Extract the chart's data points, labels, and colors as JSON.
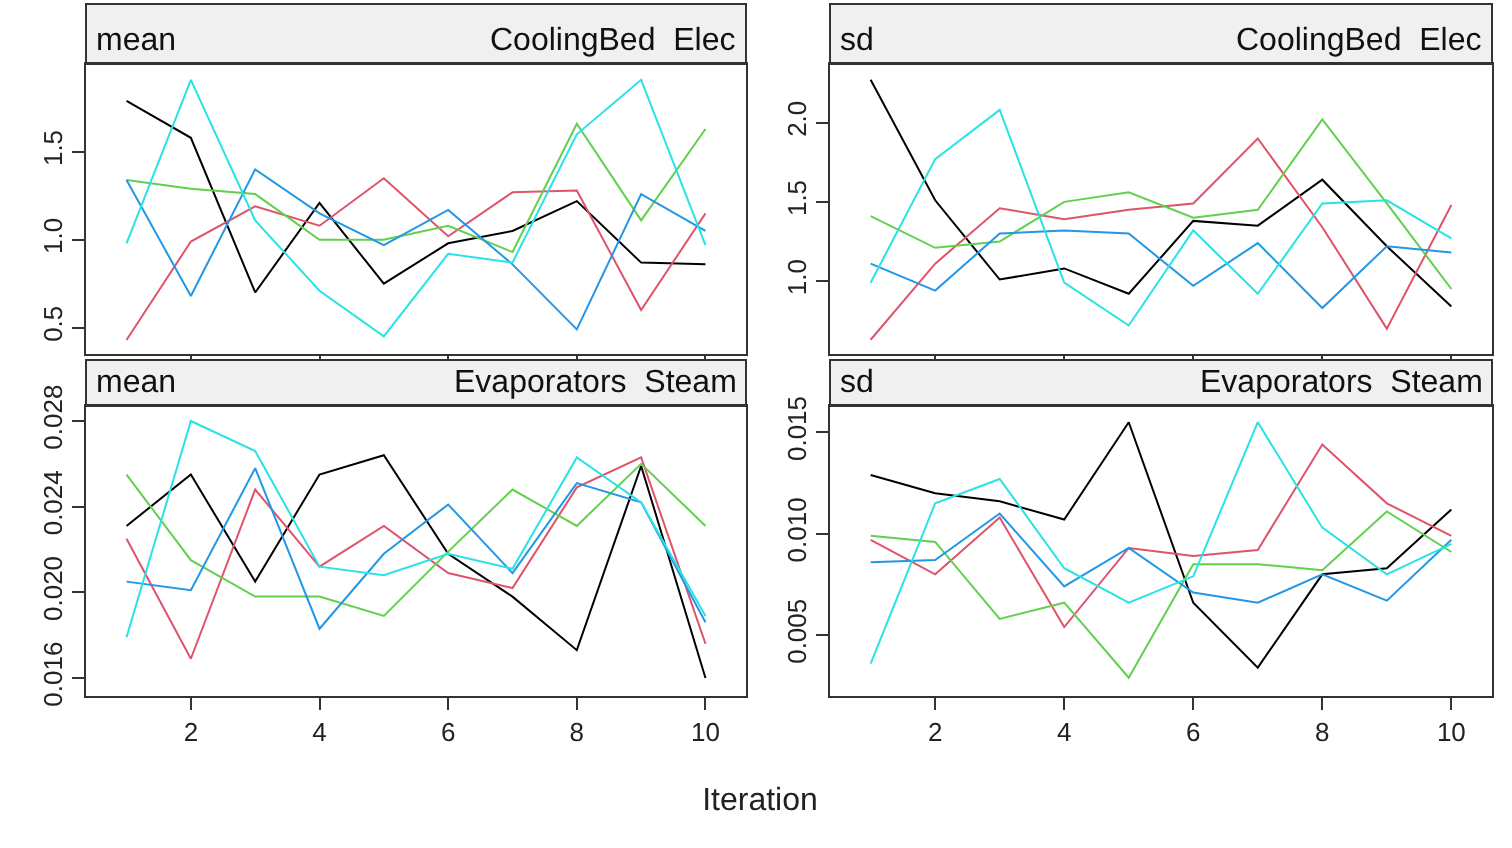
{
  "chart_data": [
    {
      "type": "line",
      "title": "mean",
      "subtitle": "CoolingBed  Elec",
      "x": [
        1,
        2,
        3,
        4,
        5,
        6,
        7,
        8,
        9,
        10
      ],
      "xlim": [
        0.37,
        10.63
      ],
      "xticks": [
        2,
        4,
        6,
        8,
        10
      ],
      "ylim": [
        0.35,
        2.0
      ],
      "yticks": [
        0.5,
        {
          "value": 1,
          "label": "1.0"
        },
        1.5
      ],
      "tick_labels": "y",
      "grid": false,
      "line_style": "solid",
      "series": [
        {
          "color": "#000000",
          "values": [
            1.79,
            1.58,
            0.7,
            1.21,
            0.75,
            0.98,
            1.05,
            1.22,
            0.87,
            0.86
          ]
        },
        {
          "color": "#df536b",
          "values": [
            0.43,
            0.99,
            1.19,
            1.08,
            1.35,
            1.02,
            1.27,
            1.28,
            0.6,
            1.15
          ]
        },
        {
          "color": "#61d04f",
          "values": [
            1.34,
            1.29,
            1.26,
            1.0,
            1.0,
            1.08,
            0.93,
            1.66,
            1.11,
            1.63
          ]
        },
        {
          "color": "#2297e6",
          "values": [
            1.34,
            0.68,
            1.4,
            1.15,
            0.97,
            1.17,
            0.86,
            0.49,
            1.26,
            1.05
          ]
        },
        {
          "color": "#28e2e5",
          "values": [
            0.98,
            1.91,
            1.11,
            0.71,
            0.45,
            0.92,
            0.87,
            1.6,
            1.91,
            0.97
          ]
        }
      ]
    },
    {
      "type": "line",
      "title": "sd",
      "subtitle": "CoolingBed  Elec",
      "x": [
        1,
        2,
        3,
        4,
        5,
        6,
        7,
        8,
        9,
        10
      ],
      "xlim": [
        0.37,
        10.63
      ],
      "xticks": [
        2,
        4,
        6,
        8,
        10
      ],
      "ylim": [
        0.54,
        2.37
      ],
      "yticks": [
        {
          "value": 1,
          "label": "1.0"
        },
        1.5,
        {
          "value": 2,
          "label": "2.0"
        }
      ],
      "tick_labels": "y",
      "grid": false,
      "line_style": "solid",
      "series": [
        {
          "color": "#000000",
          "values": [
            2.27,
            1.51,
            1.01,
            1.08,
            0.92,
            1.38,
            1.35,
            1.64,
            1.22,
            0.84
          ]
        },
        {
          "color": "#df536b",
          "values": [
            0.63,
            1.11,
            1.46,
            1.39,
            1.45,
            1.49,
            1.9,
            1.34,
            0.7,
            1.48
          ]
        },
        {
          "color": "#61d04f",
          "values": [
            1.41,
            1.21,
            1.25,
            1.5,
            1.56,
            1.4,
            1.45,
            2.02,
            1.49,
            0.95
          ]
        },
        {
          "color": "#2297e6",
          "values": [
            1.11,
            0.94,
            1.3,
            1.32,
            1.3,
            0.97,
            1.24,
            0.83,
            1.22,
            1.18
          ]
        },
        {
          "color": "#28e2e5",
          "values": [
            0.99,
            1.77,
            2.08,
            0.99,
            0.72,
            1.32,
            0.92,
            1.49,
            1.51,
            1.27
          ]
        }
      ]
    },
    {
      "type": "line",
      "title": "mean",
      "subtitle": "Evaporators  Steam",
      "xlabel": "Iteration",
      "x": [
        1,
        2,
        3,
        4,
        5,
        6,
        7,
        8,
        9,
        10
      ],
      "xlim": [
        0.37,
        10.63
      ],
      "xticks": [
        2,
        4,
        6,
        8,
        10
      ],
      "ylim": [
        0.01516,
        0.0287
      ],
      "yticks": [
        0.016,
        {
          "value": 0.02,
          "label": "0.020"
        },
        0.024,
        0.028
      ],
      "grid": false,
      "line_style": "solid",
      "series": [
        {
          "color": "#000000",
          "values": [
            0.0231,
            0.0255,
            0.0205,
            0.0255,
            0.0264,
            0.0218,
            0.0198,
            0.0173,
            0.0259,
            0.016
          ]
        },
        {
          "color": "#df536b",
          "values": [
            0.0225,
            0.0169,
            0.0248,
            0.0212,
            0.0231,
            0.0209,
            0.0202,
            0.0249,
            0.0263,
            0.0176
          ]
        },
        {
          "color": "#61d04f",
          "values": [
            0.0255,
            0.0215,
            0.0198,
            0.0198,
            0.0189,
            0.0219,
            0.0248,
            0.0231,
            0.026,
            0.0231
          ]
        },
        {
          "color": "#2297e6",
          "values": [
            0.0205,
            0.0201,
            0.0258,
            0.0183,
            0.0218,
            0.0241,
            0.0209,
            0.0251,
            0.0242,
            0.0186
          ]
        },
        {
          "color": "#28e2e5",
          "values": [
            0.0179,
            0.028,
            0.0266,
            0.0212,
            0.0208,
            0.0218,
            0.0211,
            0.0263,
            0.0242,
            0.0189
          ]
        }
      ]
    },
    {
      "type": "line",
      "title": "sd",
      "subtitle": "Evaporators  Steam",
      "x": [
        1,
        2,
        3,
        4,
        5,
        6,
        7,
        8,
        9,
        10
      ],
      "xlim": [
        0.37,
        10.63
      ],
      "xticks": [
        2,
        4,
        6,
        8,
        10
      ],
      "ylim": [
        0.002,
        0.0163
      ],
      "yticks": [
        0.005,
        {
          "value": 0.01,
          "label": "0.010"
        },
        0.015
      ],
      "grid": false,
      "line_style": "solid",
      "series": [
        {
          "color": "#000000",
          "values": [
            0.0129,
            0.012,
            0.0116,
            0.0107,
            0.0155,
            0.0066,
            0.0034,
            0.008,
            0.0083,
            0.0112
          ]
        },
        {
          "color": "#df536b",
          "values": [
            0.0097,
            0.008,
            0.0108,
            0.0054,
            0.0093,
            0.0089,
            0.0092,
            0.0144,
            0.0115,
            0.0099
          ]
        },
        {
          "color": "#61d04f",
          "values": [
            0.0099,
            0.0096,
            0.0058,
            0.0066,
            0.0029,
            0.0085,
            0.0085,
            0.0082,
            0.0111,
            0.0091
          ]
        },
        {
          "color": "#2297e6",
          "values": [
            0.0086,
            0.0087,
            0.011,
            0.0074,
            0.0093,
            0.0071,
            0.0066,
            0.008,
            0.0067,
            0.0097
          ]
        },
        {
          "color": "#28e2e5",
          "values": [
            0.0036,
            0.0115,
            0.0127,
            0.0083,
            0.0066,
            0.0079,
            0.0155,
            0.0103,
            0.008,
            0.0095
          ]
        }
      ]
    }
  ]
}
